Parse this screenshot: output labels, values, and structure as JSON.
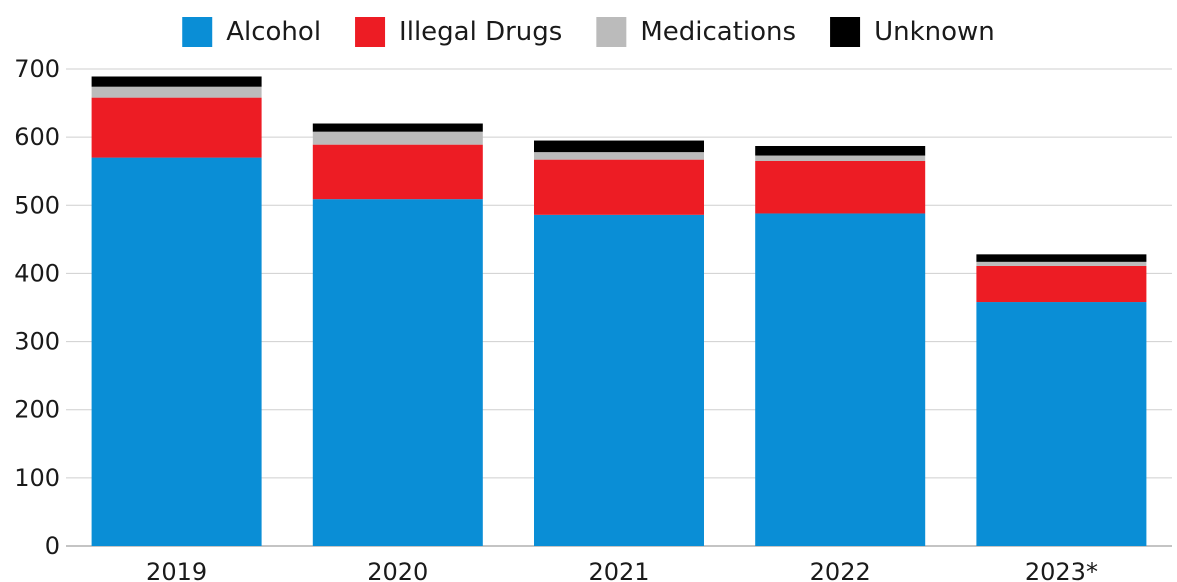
{
  "chart_data": {
    "type": "bar",
    "stacked": true,
    "categories": [
      "2019",
      "2020",
      "2021",
      "2022",
      "2023*"
    ],
    "series": [
      {
        "name": "Alcohol",
        "color": "#0a8ed6",
        "values": [
          570,
          509,
          486,
          488,
          358
        ]
      },
      {
        "name": "Illegal Drugs",
        "color": "#ed1c24",
        "values": [
          88,
          80,
          81,
          77,
          53
        ]
      },
      {
        "name": "Medications",
        "color": "#bbbbbb",
        "values": [
          16,
          19,
          11,
          8,
          6
        ]
      },
      {
        "name": "Unknown",
        "color": "#000000",
        "values": [
          15,
          12,
          17,
          14,
          11
        ]
      }
    ],
    "ylim": [
      0,
      700
    ],
    "yticks": [
      0,
      100,
      200,
      300,
      400,
      500,
      600,
      700
    ],
    "grid": true,
    "legend_position": "top-center",
    "title": "",
    "xlabel": "",
    "ylabel": ""
  }
}
